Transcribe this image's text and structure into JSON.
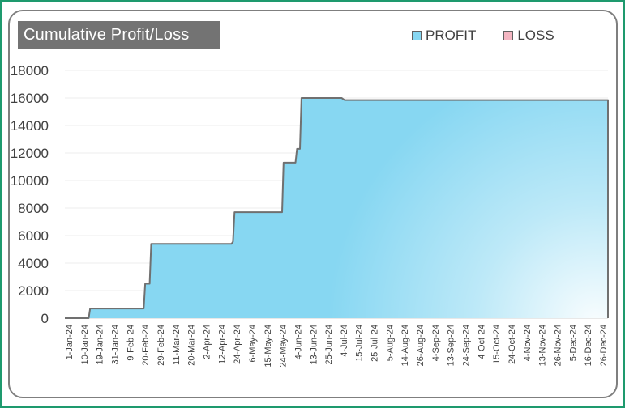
{
  "chart_data": {
    "type": "area",
    "title": "Cumulative Profit/Loss",
    "xlabel": "",
    "ylabel": "",
    "ylim": [
      0,
      18000
    ],
    "yticks": [
      0,
      2000,
      4000,
      6000,
      8000,
      10000,
      12000,
      14000,
      16000,
      18000
    ],
    "xlim": [
      "2024-01-01",
      "2024-12-31"
    ],
    "xtick_labels": [
      "1-Jan-24",
      "10-Jan-24",
      "19-Jan-24",
      "31-Jan-24",
      "9-Feb-24",
      "20-Feb-24",
      "29-Feb-24",
      "11-Mar-24",
      "20-Mar-24",
      "2-Apr-24",
      "12-Apr-24",
      "24-Apr-24",
      "6-May-24",
      "15-May-24",
      "24-May-24",
      "4-Jun-24",
      "13-Jun-24",
      "25-Jun-24",
      "4-Jul-24",
      "15-Jul-24",
      "25-Jul-24",
      "5-Aug-24",
      "14-Aug-24",
      "26-Aug-24",
      "4-Sep-24",
      "13-Sep-24",
      "24-Sep-24",
      "4-Oct-24",
      "15-Oct-24",
      "24-Oct-24",
      "4-Nov-24",
      "13-Nov-24",
      "26-Nov-24",
      "5-Dec-24",
      "16-Dec-24",
      "26-Dec-24"
    ],
    "grid": true,
    "legend_position": "top-right",
    "series": [
      {
        "name": "PROFIT",
        "color": "#87d7f2",
        "points": [
          [
            "2024-01-01",
            0
          ],
          [
            "2024-01-17",
            0
          ],
          [
            "2024-01-18",
            700
          ],
          [
            "2024-02-23",
            700
          ],
          [
            "2024-02-24",
            2500
          ],
          [
            "2024-02-27",
            2500
          ],
          [
            "2024-02-28",
            5400
          ],
          [
            "2024-04-22",
            5400
          ],
          [
            "2024-04-23",
            5550
          ],
          [
            "2024-04-24",
            7700
          ],
          [
            "2024-05-26",
            7700
          ],
          [
            "2024-05-27",
            11300
          ],
          [
            "2024-06-04",
            11300
          ],
          [
            "2024-06-05",
            12300
          ],
          [
            "2024-06-07",
            12300
          ],
          [
            "2024-06-08",
            16000
          ],
          [
            "2024-07-05",
            16000
          ],
          [
            "2024-07-07",
            15850
          ],
          [
            "2024-12-31",
            15850
          ]
        ]
      },
      {
        "name": "LOSS",
        "color": "#f4b6c2",
        "points": []
      }
    ]
  },
  "legend": {
    "profit_label": "PROFIT",
    "loss_label": "LOSS"
  },
  "colors": {
    "profit_fill": "#87d7f2",
    "loss_fill": "#f4b6c2",
    "line": "#707070",
    "border": "#1e9a6e"
  }
}
